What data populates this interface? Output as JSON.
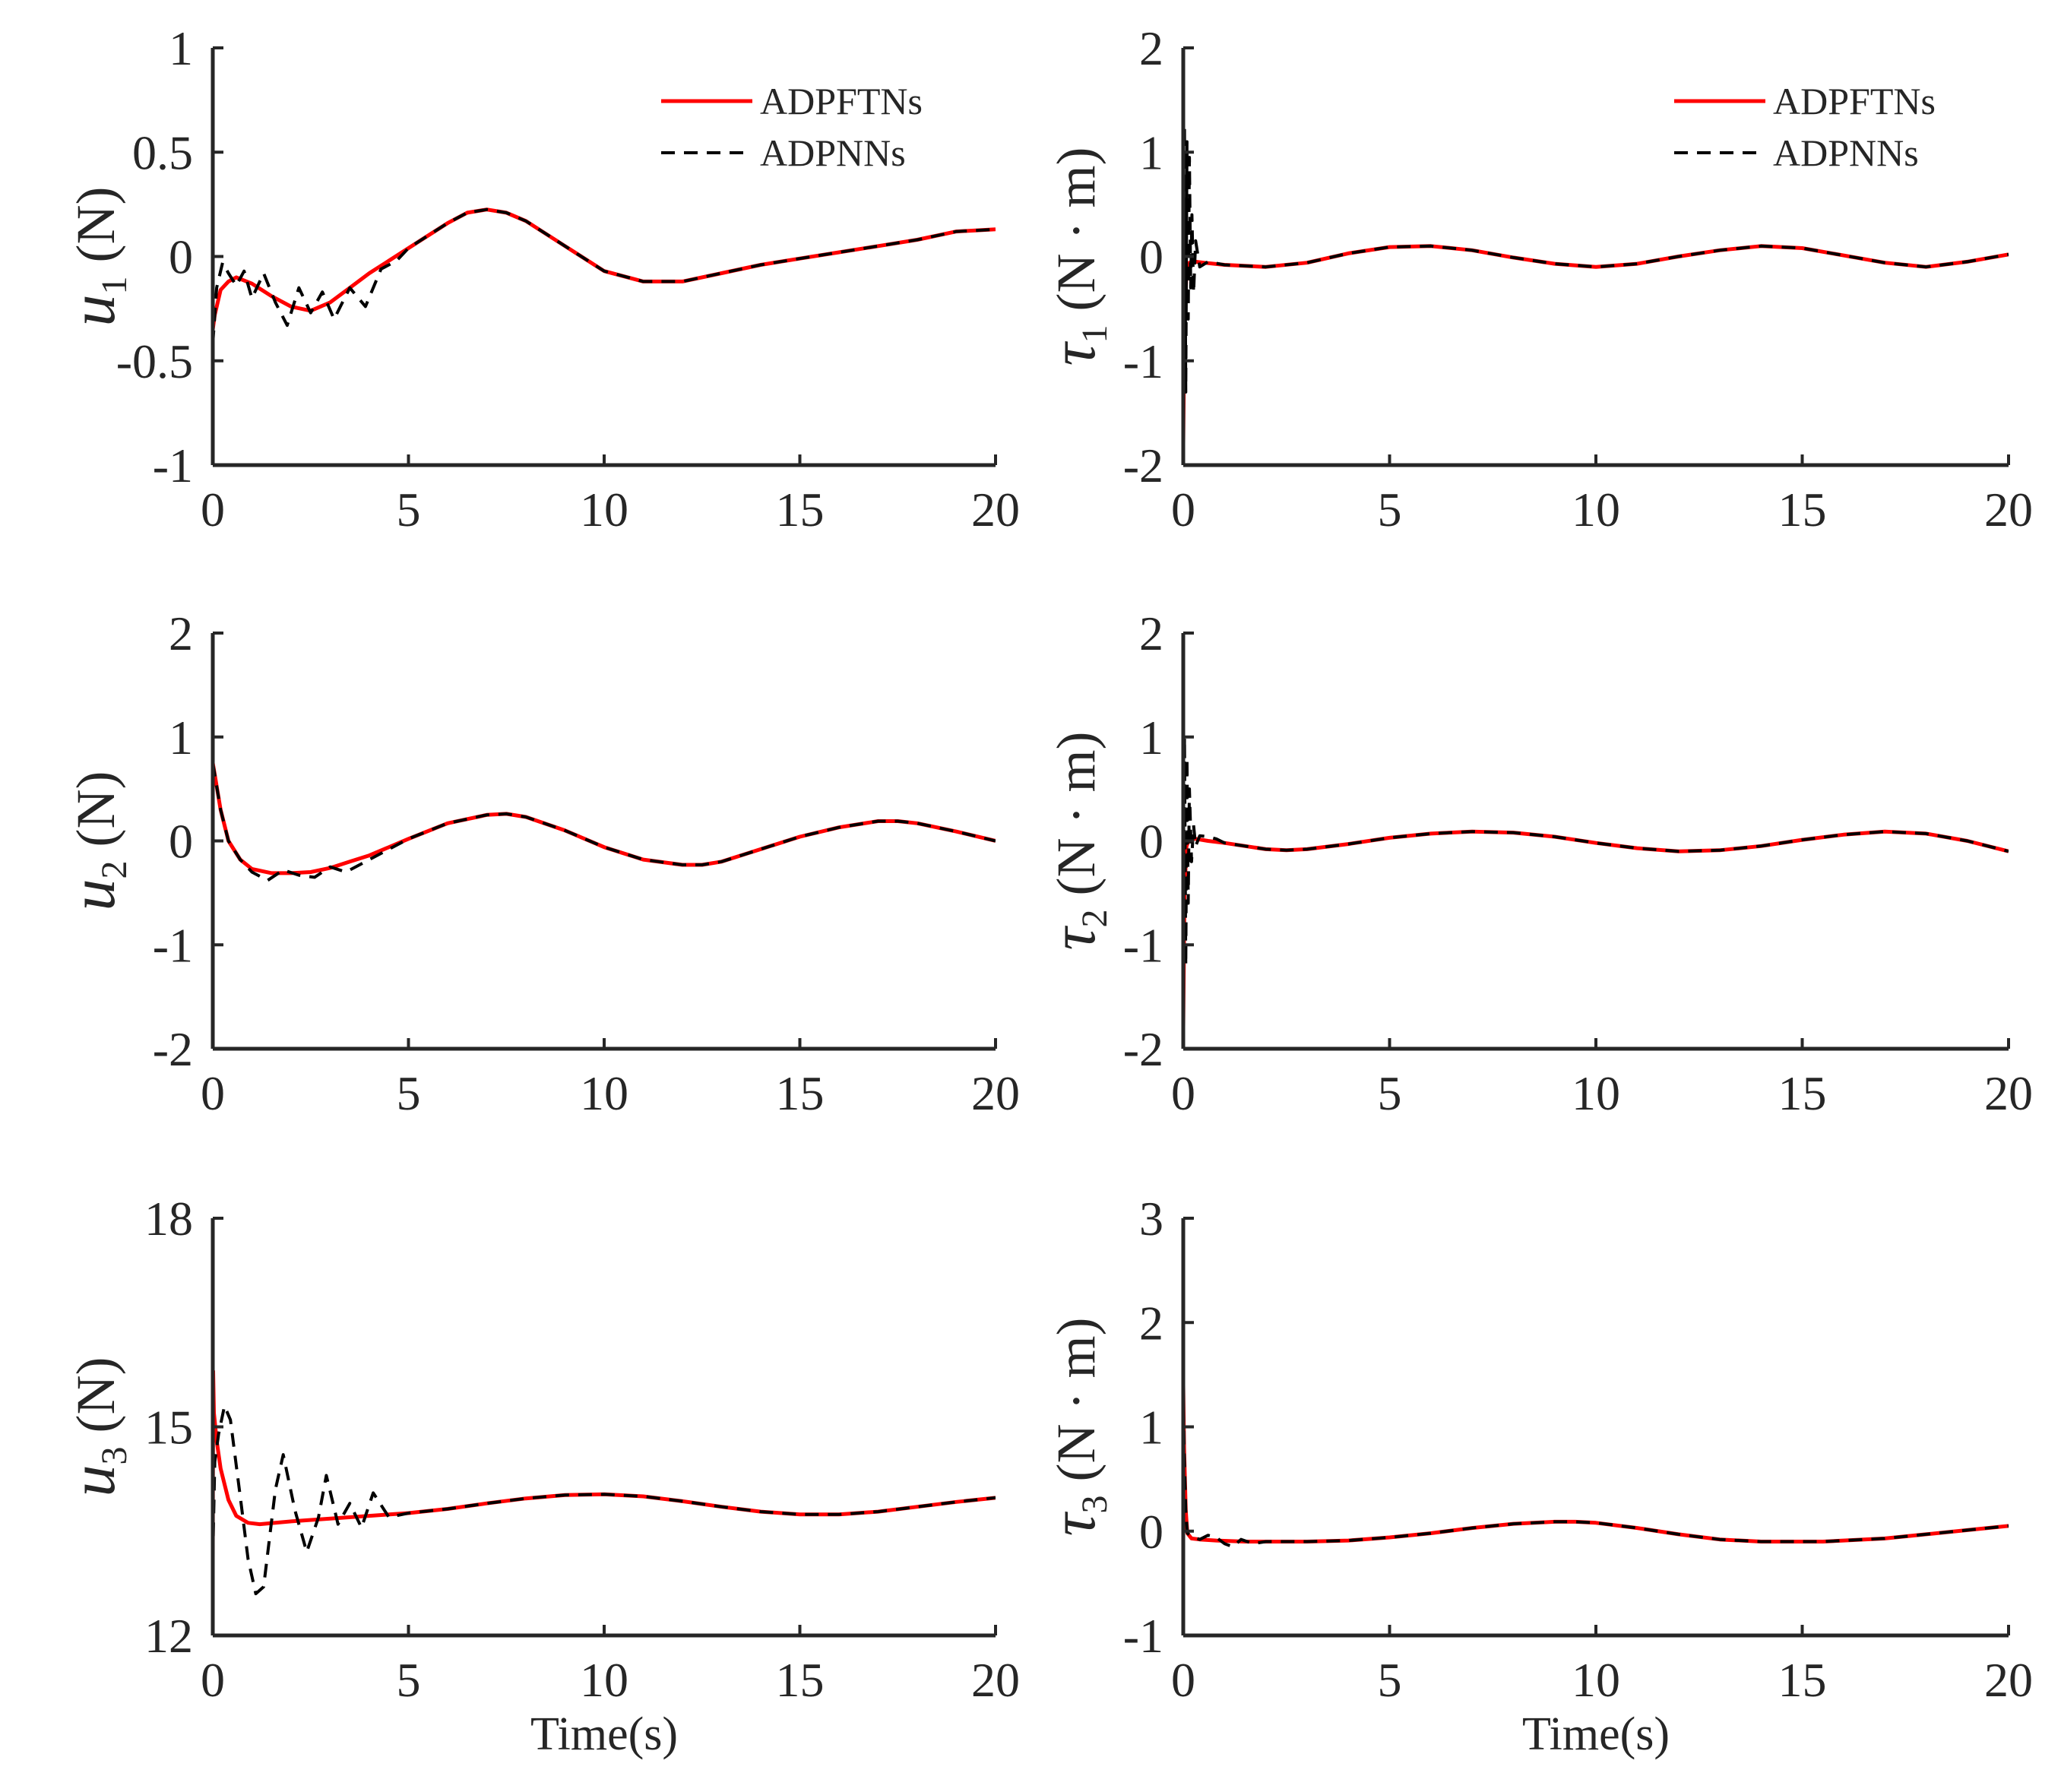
{
  "chart_data": [
    {
      "id": "u1",
      "type": "line",
      "ylabel": {
        "symbol": "u",
        "subscript": "1",
        "unit": "(N)"
      },
      "xlabel": "",
      "xlim": [
        0,
        20
      ],
      "ylim": [
        -1,
        1
      ],
      "xticks": [
        0,
        5,
        10,
        15,
        20
      ],
      "xtick_labels": [
        "0",
        "5",
        "10",
        "15",
        "20"
      ],
      "yticks": [
        -1,
        -0.5,
        0,
        0.5,
        1
      ],
      "ytick_labels": [
        "-1",
        "-0.5",
        "0",
        "0.5",
        "1"
      ],
      "legend": true,
      "legend_position": "top-right",
      "series": [
        {
          "name": "ADPFTNs",
          "style": "solid",
          "color": "#ff0000",
          "x": [
            0,
            0.05,
            0.2,
            0.4,
            0.6,
            1.0,
            1.5,
            2.0,
            2.5,
            3.0,
            3.5,
            4.0,
            4.5,
            5.0,
            5.5,
            6.0,
            6.5,
            7.0,
            7.5,
            8.0,
            9.0,
            10.0,
            11.0,
            12.0,
            13.0,
            14.0,
            15.0,
            16.0,
            17.0,
            18.0,
            19.0,
            20.0
          ],
          "y": [
            -0.35,
            -0.28,
            -0.16,
            -0.12,
            -0.1,
            -0.13,
            -0.19,
            -0.24,
            -0.26,
            -0.22,
            -0.15,
            -0.08,
            -0.02,
            0.04,
            0.1,
            0.16,
            0.21,
            0.225,
            0.21,
            0.17,
            0.05,
            -0.07,
            -0.12,
            -0.12,
            -0.08,
            -0.04,
            -0.01,
            0.02,
            0.05,
            0.08,
            0.12,
            0.13
          ]
        },
        {
          "name": "ADPNNs",
          "style": "dashed",
          "color": "#000000",
          "x": [
            0,
            0.1,
            0.25,
            0.4,
            0.6,
            0.8,
            1.0,
            1.3,
            1.6,
            1.9,
            2.2,
            2.5,
            2.8,
            3.1,
            3.5,
            3.9,
            4.3,
            4.7,
            5.0,
            5.5,
            6.0,
            6.5,
            7.0,
            7.5,
            8.0,
            9.0,
            10.0,
            11.0,
            12.0,
            13.0,
            14.0,
            15.0,
            16.0,
            17.0,
            18.0,
            19.0,
            20.0
          ],
          "y": [
            -0.42,
            -0.15,
            -0.03,
            -0.08,
            -0.14,
            -0.07,
            -0.2,
            -0.08,
            -0.22,
            -0.33,
            -0.15,
            -0.27,
            -0.17,
            -0.3,
            -0.15,
            -0.24,
            -0.06,
            -0.02,
            0.04,
            0.1,
            0.16,
            0.21,
            0.225,
            0.21,
            0.17,
            0.05,
            -0.07,
            -0.12,
            -0.12,
            -0.08,
            -0.04,
            -0.01,
            0.02,
            0.05,
            0.08,
            0.12,
            0.13
          ]
        }
      ]
    },
    {
      "id": "tau1",
      "type": "line",
      "ylabel": {
        "symbol": "τ",
        "subscript": "1",
        "unit": "(N · m)"
      },
      "xlabel": "",
      "xlim": [
        0,
        20
      ],
      "ylim": [
        -2,
        2
      ],
      "xticks": [
        0,
        5,
        10,
        15,
        20
      ],
      "xtick_labels": [
        "0",
        "5",
        "10",
        "15",
        "20"
      ],
      "yticks": [
        -2,
        -1,
        0,
        1,
        2
      ],
      "ytick_labels": [
        "-2",
        "-1",
        "0",
        "1",
        "2"
      ],
      "legend": true,
      "legend_position": "top-right",
      "series": [
        {
          "name": "ADPFTNs",
          "style": "solid",
          "color": "#ff0000",
          "x": [
            0,
            0.03,
            0.08,
            0.15,
            0.3,
            0.5,
            1.0,
            2.0,
            3.0,
            4.0,
            5.0,
            6.0,
            7.0,
            8.0,
            9.0,
            10.0,
            11.0,
            12.0,
            13.0,
            14.0,
            15.0,
            16.0,
            17.0,
            18.0,
            19.0,
            20.0
          ],
          "y": [
            -1.8,
            -0.6,
            -0.15,
            -0.06,
            -0.05,
            -0.06,
            -0.08,
            -0.1,
            -0.06,
            0.03,
            0.09,
            0.1,
            0.06,
            -0.01,
            -0.07,
            -0.1,
            -0.07,
            0.0,
            0.06,
            0.1,
            0.08,
            0.01,
            -0.06,
            -0.1,
            -0.05,
            0.02
          ]
        },
        {
          "name": "ADPNNs",
          "style": "dashed",
          "color": "#000000",
          "x": [
            0,
            0.03,
            0.06,
            0.09,
            0.12,
            0.15,
            0.18,
            0.21,
            0.25,
            0.3,
            0.4,
            0.6,
            1.0,
            2.0,
            3.0,
            4.0,
            5.0,
            6.0,
            7.0,
            8.0,
            9.0,
            10.0,
            11.0,
            12.0,
            13.0,
            14.0,
            15.0,
            16.0,
            17.0,
            18.0,
            19.0,
            20.0
          ],
          "y": [
            -2.0,
            1.25,
            -1.3,
            1.1,
            -0.6,
            0.95,
            -0.3,
            0.4,
            -0.35,
            0.15,
            -0.1,
            -0.05,
            -0.08,
            -0.1,
            -0.06,
            0.03,
            0.09,
            0.1,
            0.06,
            -0.01,
            -0.07,
            -0.1,
            -0.07,
            0.0,
            0.06,
            0.1,
            0.08,
            0.01,
            -0.06,
            -0.1,
            -0.05,
            0.02
          ]
        }
      ]
    },
    {
      "id": "u2",
      "type": "line",
      "ylabel": {
        "symbol": "u",
        "subscript": "2",
        "unit": "(N)"
      },
      "xlabel": "",
      "xlim": [
        0,
        20
      ],
      "ylim": [
        -2,
        2
      ],
      "xticks": [
        0,
        5,
        10,
        15,
        20
      ],
      "xtick_labels": [
        "0",
        "5",
        "10",
        "15",
        "20"
      ],
      "yticks": [
        -2,
        -1,
        0,
        1,
        2
      ],
      "ytick_labels": [
        "-2",
        "-1",
        "0",
        "1",
        "2"
      ],
      "legend": false,
      "series": [
        {
          "name": "ADPFTNs",
          "style": "solid",
          "color": "#ff0000",
          "x": [
            0,
            0.2,
            0.4,
            0.7,
            1.0,
            1.5,
            2.0,
            2.5,
            3.0,
            3.5,
            4.0,
            5.0,
            6.0,
            7.0,
            7.5,
            8.0,
            9.0,
            10.0,
            11.0,
            12.0,
            12.5,
            13.0,
            14.0,
            15.0,
            16.0,
            17.0,
            17.5,
            18.0,
            19.0,
            20.0
          ],
          "y": [
            0.75,
            0.3,
            0.0,
            -0.18,
            -0.27,
            -0.31,
            -0.31,
            -0.3,
            -0.26,
            -0.2,
            -0.14,
            0.02,
            0.17,
            0.25,
            0.26,
            0.23,
            0.1,
            -0.06,
            -0.18,
            -0.23,
            -0.23,
            -0.2,
            -0.08,
            0.04,
            0.13,
            0.19,
            0.19,
            0.17,
            0.09,
            0.0
          ]
        },
        {
          "name": "ADPNNs",
          "style": "dashed",
          "color": "#000000",
          "x": [
            0,
            0.2,
            0.4,
            0.7,
            1.0,
            1.4,
            1.8,
            2.2,
            2.6,
            3.0,
            3.4,
            3.8,
            4.2,
            5.0,
            6.0,
            7.0,
            7.5,
            8.0,
            9.0,
            10.0,
            11.0,
            12.0,
            12.5,
            13.0,
            14.0,
            15.0,
            16.0,
            17.0,
            17.5,
            18.0,
            19.0,
            20.0
          ],
          "y": [
            0.75,
            0.3,
            0.0,
            -0.18,
            -0.3,
            -0.38,
            -0.28,
            -0.33,
            -0.35,
            -0.25,
            -0.3,
            -0.22,
            -0.14,
            0.02,
            0.17,
            0.25,
            0.26,
            0.23,
            0.1,
            -0.06,
            -0.18,
            -0.23,
            -0.23,
            -0.2,
            -0.08,
            0.04,
            0.13,
            0.19,
            0.19,
            0.17,
            0.09,
            0.0
          ]
        }
      ]
    },
    {
      "id": "tau2",
      "type": "line",
      "ylabel": {
        "symbol": "τ",
        "subscript": "2",
        "unit": "(N · m)"
      },
      "xlabel": "",
      "xlim": [
        0,
        20
      ],
      "ylim": [
        -2,
        2
      ],
      "xticks": [
        0,
        5,
        10,
        15,
        20
      ],
      "xtick_labels": [
        "0",
        "5",
        "10",
        "15",
        "20"
      ],
      "yticks": [
        -2,
        -1,
        0,
        1,
        2
      ],
      "ytick_labels": [
        "-2",
        "-1",
        "0",
        "1",
        "2"
      ],
      "legend": false,
      "series": [
        {
          "name": "ADPFTNs",
          "style": "solid",
          "color": "#ff0000",
          "x": [
            0,
            0.03,
            0.08,
            0.15,
            0.3,
            0.6,
            1.0,
            1.5,
            2.0,
            2.5,
            3.0,
            4.0,
            5.0,
            6.0,
            7.0,
            8.0,
            9.0,
            10.0,
            11.0,
            12.0,
            13.0,
            14.0,
            15.0,
            16.0,
            17.0,
            18.0,
            19.0,
            20.0
          ],
          "y": [
            -1.8,
            -0.5,
            -0.05,
            0.02,
            0.02,
            0.0,
            -0.02,
            -0.05,
            -0.08,
            -0.09,
            -0.08,
            -0.03,
            0.03,
            0.07,
            0.09,
            0.08,
            0.04,
            -0.02,
            -0.07,
            -0.1,
            -0.09,
            -0.05,
            0.01,
            0.06,
            0.09,
            0.07,
            0.0,
            -0.1
          ]
        },
        {
          "name": "ADPNNs",
          "style": "dashed",
          "color": "#000000",
          "x": [
            0,
            0.03,
            0.06,
            0.09,
            0.12,
            0.15,
            0.2,
            0.25,
            0.3,
            0.4,
            0.6,
            0.8,
            1.0,
            1.5,
            2.0,
            2.5,
            3.0,
            4.0,
            5.0,
            6.0,
            7.0,
            8.0,
            9.0,
            10.0,
            11.0,
            12.0,
            13.0,
            14.0,
            15.0,
            16.0,
            17.0,
            18.0,
            19.0,
            20.0
          ],
          "y": [
            -2.0,
            1.0,
            -1.2,
            0.8,
            -0.6,
            0.5,
            -0.2,
            0.15,
            -0.05,
            0.05,
            0.04,
            0.02,
            -0.02,
            -0.05,
            -0.08,
            -0.09,
            -0.08,
            -0.03,
            0.03,
            0.07,
            0.09,
            0.08,
            0.04,
            -0.02,
            -0.07,
            -0.1,
            -0.09,
            -0.05,
            0.01,
            0.06,
            0.09,
            0.07,
            0.0,
            -0.1
          ]
        }
      ]
    },
    {
      "id": "u3",
      "type": "line",
      "ylabel": {
        "symbol": "u",
        "subscript": "3",
        "unit": "(N)"
      },
      "xlabel": "Time(s)",
      "xlim": [
        0,
        20
      ],
      "ylim": [
        12,
        18
      ],
      "xticks": [
        0,
        5,
        10,
        15,
        20
      ],
      "xtick_labels": [
        "0",
        "5",
        "10",
        "15",
        "20"
      ],
      "yticks": [
        12,
        15,
        18
      ],
      "ytick_labels": [
        "12",
        "15",
        "18"
      ],
      "legend": false,
      "series": [
        {
          "name": "ADPFTNs",
          "style": "solid",
          "color": "#ff0000",
          "x": [
            0,
            0.01,
            0.03,
            0.1,
            0.2,
            0.4,
            0.6,
            0.9,
            1.2,
            1.6,
            2.0,
            3.0,
            4.0,
            5.0,
            6.0,
            7.0,
            8.0,
            9.0,
            10.0,
            11.0,
            12.0,
            13.0,
            14.0,
            15.0,
            16.0,
            17.0,
            18.0,
            19.0,
            20.0
          ],
          "y": [
            13.1,
            15.8,
            15.2,
            14.8,
            14.4,
            13.95,
            13.72,
            13.62,
            13.6,
            13.62,
            13.64,
            13.68,
            13.72,
            13.76,
            13.82,
            13.9,
            13.97,
            14.02,
            14.03,
            14.0,
            13.93,
            13.85,
            13.78,
            13.74,
            13.74,
            13.78,
            13.85,
            13.92,
            13.98
          ]
        },
        {
          "name": "ADPNNs",
          "style": "dashed",
          "color": "#000000",
          "x": [
            0,
            0.05,
            0.15,
            0.3,
            0.45,
            0.7,
            0.9,
            1.1,
            1.3,
            1.6,
            1.8,
            2.1,
            2.4,
            2.7,
            2.9,
            3.2,
            3.5,
            3.8,
            4.1,
            4.5,
            5.0,
            6.0,
            7.0,
            8.0,
            9.0,
            10.0,
            11.0,
            12.0,
            13.0,
            14.0,
            15.0,
            16.0,
            17.0,
            18.0,
            19.0,
            20.0
          ],
          "y": [
            13.1,
            14.5,
            14.9,
            15.3,
            15.1,
            14.0,
            13.1,
            12.6,
            12.7,
            14.1,
            14.6,
            13.8,
            13.2,
            13.7,
            14.3,
            13.6,
            13.9,
            13.55,
            14.05,
            13.7,
            13.76,
            13.82,
            13.9,
            13.97,
            14.02,
            14.03,
            14.0,
            13.93,
            13.85,
            13.78,
            13.74,
            13.74,
            13.78,
            13.85,
            13.92,
            13.98
          ]
        }
      ]
    },
    {
      "id": "tau3",
      "type": "line",
      "ylabel": {
        "symbol": "τ",
        "subscript": "3",
        "unit": "(N · m)"
      },
      "xlabel": "Time(s)",
      "xlim": [
        0,
        20
      ],
      "ylim": [
        -1,
        3
      ],
      "xticks": [
        0,
        5,
        10,
        15,
        20
      ],
      "xtick_labels": [
        "0",
        "5",
        "10",
        "15",
        "20"
      ],
      "yticks": [
        -1,
        0,
        1,
        2,
        3
      ],
      "ytick_labels": [
        "-1",
        "0",
        "1",
        "2",
        "3"
      ],
      "legend": false,
      "series": [
        {
          "name": "ADPFTNs",
          "style": "solid",
          "color": "#ff0000",
          "x": [
            0,
            0.02,
            0.06,
            0.1,
            0.2,
            0.4,
            0.8,
            1.5,
            2.0,
            3.0,
            4.0,
            5.0,
            6.0,
            7.0,
            8.0,
            9.0,
            9.5,
            10.0,
            11.0,
            12.0,
            13.0,
            14.0,
            15.0,
            15.5,
            16.0,
            17.0,
            18.0,
            19.0,
            20.0
          ],
          "y": [
            1.4,
            0.8,
            0.2,
            -0.02,
            -0.07,
            -0.08,
            -0.09,
            -0.1,
            -0.1,
            -0.1,
            -0.09,
            -0.06,
            -0.02,
            0.03,
            0.07,
            0.09,
            0.09,
            0.08,
            0.03,
            -0.03,
            -0.08,
            -0.1,
            -0.1,
            -0.1,
            -0.09,
            -0.07,
            -0.03,
            0.01,
            0.05
          ]
        },
        {
          "name": "ADPNNs",
          "style": "dashed",
          "color": "#000000",
          "x": [
            0,
            0.02,
            0.06,
            0.1,
            0.2,
            0.4,
            0.6,
            0.8,
            1.0,
            1.2,
            1.4,
            1.7,
            2.0,
            3.0,
            4.0,
            5.0,
            6.0,
            7.0,
            8.0,
            9.0,
            9.5,
            10.0,
            11.0,
            12.0,
            13.0,
            14.0,
            15.0,
            15.5,
            16.0,
            17.0,
            18.0,
            19.0,
            20.0
          ],
          "y": [
            1.4,
            0.8,
            0.2,
            -0.02,
            -0.05,
            -0.08,
            -0.04,
            -0.06,
            -0.12,
            -0.15,
            -0.08,
            -0.12,
            -0.1,
            -0.1,
            -0.09,
            -0.06,
            -0.02,
            0.03,
            0.07,
            0.09,
            0.09,
            0.08,
            0.03,
            -0.03,
            -0.08,
            -0.1,
            -0.1,
            -0.1,
            -0.09,
            -0.07,
            -0.03,
            0.01,
            0.05
          ]
        }
      ]
    }
  ]
}
